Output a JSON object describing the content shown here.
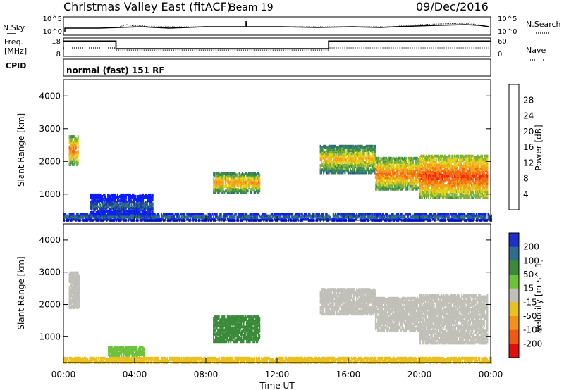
{
  "header": {
    "station": "Christmas Valley East (fitACF)",
    "beam": "Beam 19",
    "date": "09/Dec/2016"
  },
  "noise_panel": {
    "left_label": "N.Sky",
    "right_label": "N.Search",
    "ticks_left": [
      "10^5",
      "10^0"
    ],
    "ticks_right": [
      "10^5",
      "10^0"
    ]
  },
  "freq_panel": {
    "left_label_1": "Freq.",
    "left_label_2": "[MHz]",
    "right_label": "Nave",
    "ticks_left": [
      "18",
      "8"
    ],
    "ticks_right": [
      "60",
      "0"
    ]
  },
  "cpid": {
    "label": "CPID",
    "mode": "normal (fast) 151 RF"
  },
  "colors": {
    "power_scale": [
      "#0a1cff",
      "#1a3aa8",
      "#2f6f7a",
      "#3d8d4a",
      "#7fb03a",
      "#e3d21a",
      "#f2a21a",
      "#f46a12",
      "#ef2a10",
      "#e01010"
    ],
    "velocity_scale": [
      "#1f2fc8",
      "#2e6e8a",
      "#3b8a3a",
      "#6cc23a",
      "#c0c0b8",
      "#e8c020",
      "#f2901a",
      "#ef5a12",
      "#e01010"
    ]
  },
  "chart_data": [
    {
      "type": "line",
      "title": "N.Sky / N.Search",
      "x": [
        "00:00",
        "04:00",
        "08:00",
        "12:00",
        "16:00",
        "20:00",
        "00:00"
      ],
      "yscale": "log",
      "ylim_labels": [
        "10^0",
        "10^5"
      ],
      "series": [
        {
          "name": "N.Sky",
          "values_log10": [
            1.2,
            1.9,
            1.6,
            1.8,
            1.7,
            2.0,
            1.9
          ]
        },
        {
          "name": "N.Search",
          "values_log10": [
            1.3,
            2.1,
            1.7,
            1.9,
            1.8,
            2.1,
            2.0
          ]
        }
      ]
    },
    {
      "type": "line",
      "title": "Freq. / Nave",
      "x_hours": [
        0,
        2.95,
        2.95,
        14.9,
        14.9,
        24
      ],
      "series": [
        {
          "name": "Freq. [MHz]",
          "ylim": [
            8,
            18
          ],
          "values": [
            17,
            17,
            12.5,
            12.5,
            17,
            17
          ]
        },
        {
          "name": "Nave",
          "ylim": [
            0,
            60
          ],
          "values": [
            30,
            30,
            22,
            22,
            30,
            30
          ]
        }
      ]
    },
    {
      "type": "heatmap",
      "title": "Power [dB]",
      "xlabel": "",
      "ylabel": "Slant Range [km]",
      "x_ticks": [
        "00:00",
        "04:00",
        "08:00",
        "12:00",
        "16:00",
        "20:00",
        "00:00"
      ],
      "xlim_hours": [
        0,
        24
      ],
      "y_ticks": [
        1000,
        2000,
        3000,
        4000
      ],
      "ylim": [
        200,
        4500
      ],
      "colorbar_label": "Power [dB]",
      "colorbar_ticks": [
        4,
        8,
        12,
        16,
        20,
        24,
        28
      ],
      "colorbar_range": [
        0,
        32
      ],
      "regions": [
        {
          "t0": 0.3,
          "t1": 0.8,
          "r0": 1900,
          "r1": 2800,
          "value": 24
        },
        {
          "t0": 8.4,
          "t1": 11.0,
          "r0": 1050,
          "r1": 1650,
          "value": 22
        },
        {
          "t0": 14.4,
          "t1": 17.5,
          "r0": 1650,
          "r1": 2500,
          "value": 20
        },
        {
          "t0": 17.5,
          "t1": 20.0,
          "r0": 1150,
          "r1": 2100,
          "value": 24
        },
        {
          "t0": 20.0,
          "t1": 23.8,
          "r0": 900,
          "r1": 2200,
          "value": 26
        },
        {
          "t0": 1.5,
          "t1": 5.0,
          "r0": 300,
          "r1": 1000,
          "value": 8
        },
        {
          "t0": 0.0,
          "t1": 24.0,
          "r0": 200,
          "r1": 420,
          "value": 10
        }
      ]
    },
    {
      "type": "heatmap",
      "title": "Velocity [m s^-1]",
      "xlabel": "Time UT",
      "ylabel": "Slant Range [km]",
      "x_ticks": [
        "00:00",
        "04:00",
        "08:00",
        "12:00",
        "16:00",
        "20:00",
        "00:00"
      ],
      "xlim_hours": [
        0,
        24
      ],
      "y_ticks": [
        1000,
        2000,
        3000,
        4000
      ],
      "ylim": [
        200,
        4500
      ],
      "colorbar_label": "Velocity [m s^-1]",
      "colorbar_ticks": [
        200,
        100,
        50,
        15,
        -15,
        -50,
        -100,
        -200
      ],
      "regions": [
        {
          "t0": 0.3,
          "t1": 0.9,
          "r0": 1900,
          "r1": 3000,
          "value": 0
        },
        {
          "t0": 8.4,
          "t1": 11.0,
          "r0": 850,
          "r1": 1650,
          "value": 60
        },
        {
          "t0": 14.4,
          "t1": 17.5,
          "r0": 1700,
          "r1": 2500,
          "value": 0
        },
        {
          "t0": 17.5,
          "t1": 20.0,
          "r0": 1200,
          "r1": 2200,
          "value": 0
        },
        {
          "t0": 20.0,
          "t1": 23.8,
          "r0": 800,
          "r1": 2300,
          "value": 0
        },
        {
          "t0": 2.5,
          "t1": 4.5,
          "r0": 400,
          "r1": 700,
          "value": 30
        },
        {
          "t0": 0.0,
          "t1": 24.0,
          "r0": 200,
          "r1": 360,
          "value": -40
        }
      ]
    }
  ]
}
